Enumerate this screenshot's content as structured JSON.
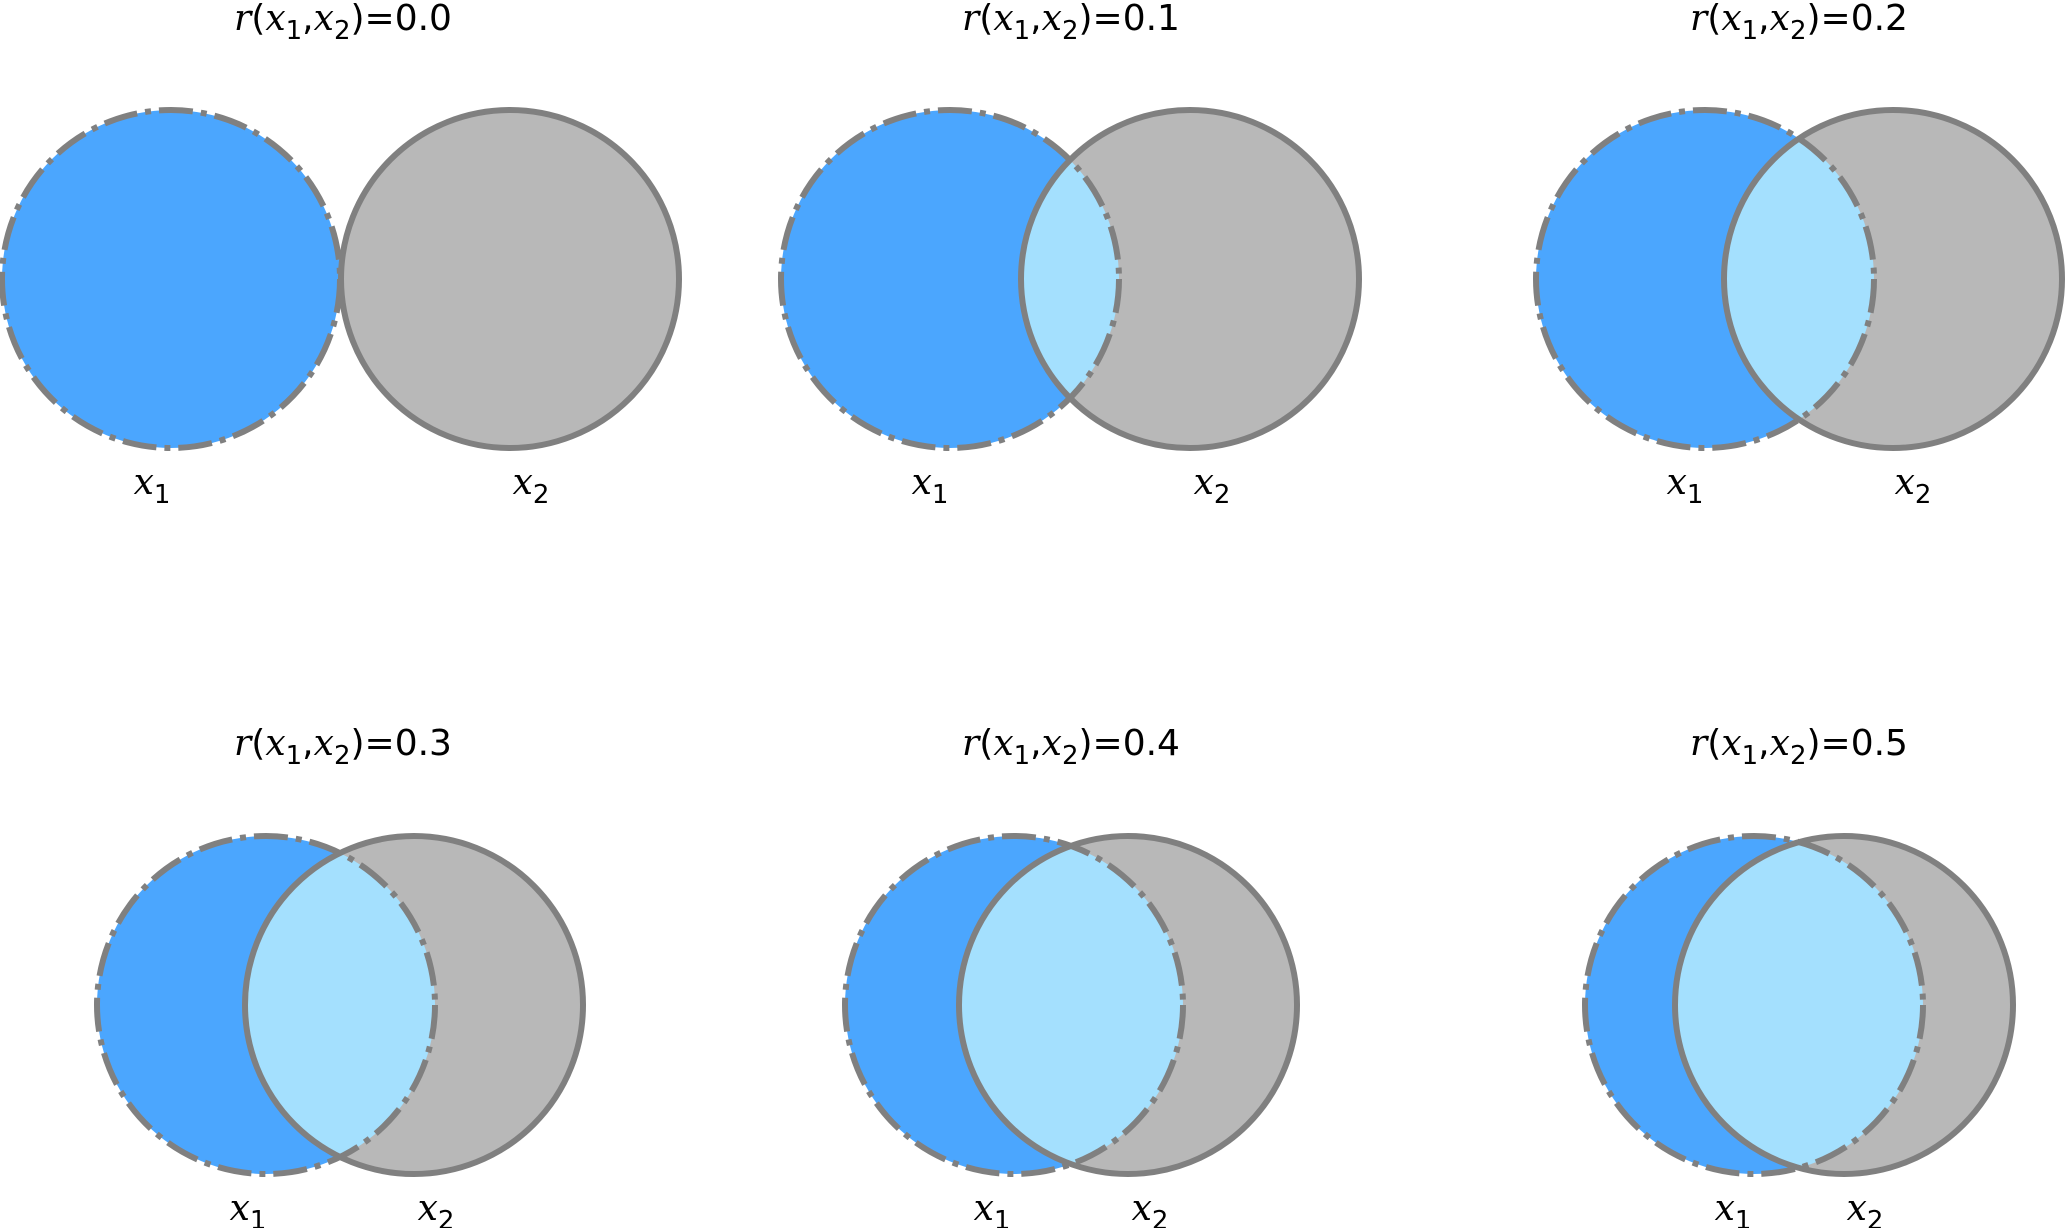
{
  "title": "",
  "colors": {
    "x1_fill": "#4ba6fe",
    "x2_fill": "#b8b8b8",
    "overlap_fill": "#a4e0fe",
    "outline": "#808080",
    "background": "#ffffff"
  },
  "labels": {
    "x1": "x1",
    "x2": "x2"
  },
  "panels": [
    {
      "title": "r(x1,x2)=0.0",
      "correlation": 0.0
    },
    {
      "title": "r(x1,x2)=0.1",
      "correlation": 0.1
    },
    {
      "title": "r(x1,x2)=0.2",
      "correlation": 0.2
    },
    {
      "title": "r(x1,x2)=0.3",
      "correlation": 0.3
    },
    {
      "title": "r(x1,x2)=0.4",
      "correlation": 0.4
    },
    {
      "title": "r(x1,x2)=0.5",
      "correlation": 0.5
    }
  ]
}
